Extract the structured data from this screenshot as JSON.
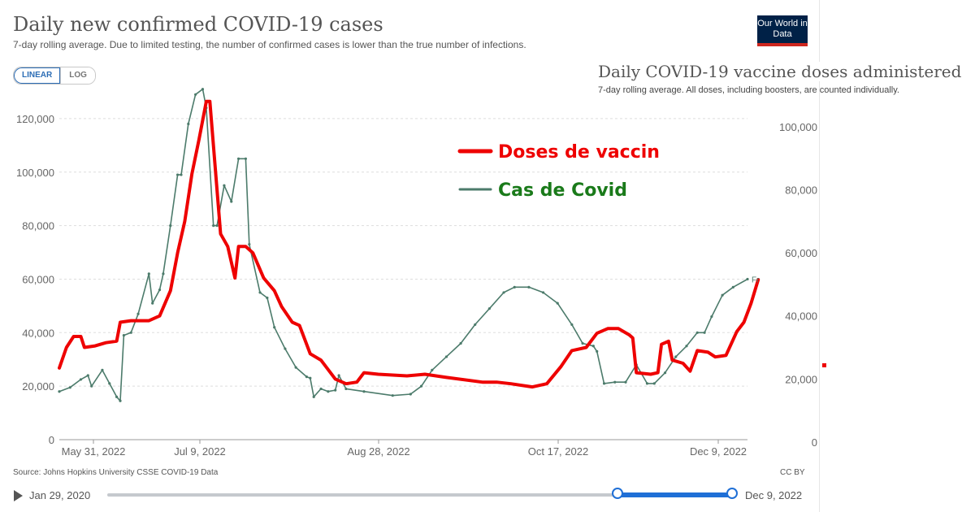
{
  "header": {
    "title": "Daily new confirmed COVID-19 cases",
    "subtitle": "7-day rolling average. Due to limited testing, the number of confirmed cases is lower than the true number of infections.",
    "logo": "Our World in Data"
  },
  "scale_toggle": {
    "linear": "LINEAR",
    "log": "LOG",
    "selected": "LINEAR"
  },
  "overlay": {
    "title": "Daily COVID-19 vaccine doses administered",
    "subtitle": "7-day rolling average. All doses, including boosters, are counted individually."
  },
  "footer": {
    "source": "Source: Johns Hopkins University CSSE COVID-19 Data",
    "license": "CC BY"
  },
  "timeline": {
    "start_label": "Jan 29, 2020",
    "end_label": "Dec 9, 2022",
    "range_start_fraction": 0.818,
    "range_end_fraction": 1.0
  },
  "chart_data": {
    "type": "line",
    "x_tick_labels": [
      "May 31, 2022",
      "Jul 9, 2022",
      "Aug 28, 2022",
      "Oct 17, 2022",
      "Dec 9, 2022"
    ],
    "x_range": [
      "2022-05-31",
      "2022-12-09"
    ],
    "y_left": {
      "ticks": [
        0,
        20000,
        40000,
        60000,
        80000,
        100000,
        120000
      ],
      "tick_labels": [
        "0",
        "20,000",
        "40,000",
        "60,000",
        "80,000",
        "100,000",
        "120,000"
      ],
      "range": [
        0,
        130000
      ]
    },
    "y_right": {
      "ticks": [
        0,
        20000,
        40000,
        60000,
        80000,
        100000
      ],
      "tick_labels": [
        "0",
        "20,000",
        "40,000",
        "60,000",
        "80,000",
        "100,000"
      ],
      "range": [
        0,
        110000
      ]
    },
    "grid": true,
    "legend": [
      {
        "label": "Doses de vaccin",
        "color": "#ee0000"
      },
      {
        "label": "Cas de Covid",
        "color": "#4c7b6b"
      }
    ],
    "end_label": "Fr",
    "series": [
      {
        "axis": "left",
        "color": "#4c7b6b",
        "points": [
          [
            "2022-05-31",
            18000
          ],
          [
            "2022-06-03",
            19500
          ],
          [
            "2022-06-06",
            22500
          ],
          [
            "2022-06-08",
            24000
          ],
          [
            "2022-06-09",
            20000
          ],
          [
            "2022-06-12",
            26000
          ],
          [
            "2022-06-14",
            21000
          ],
          [
            "2022-06-16",
            16000
          ],
          [
            "2022-06-17",
            14500
          ],
          [
            "2022-06-18",
            39000
          ],
          [
            "2022-06-20",
            40000
          ],
          [
            "2022-06-22",
            47000
          ],
          [
            "2022-06-25",
            62000
          ],
          [
            "2022-06-26",
            51000
          ],
          [
            "2022-06-28",
            56000
          ],
          [
            "2022-06-29",
            62000
          ],
          [
            "2022-07-01",
            80000
          ],
          [
            "2022-07-03",
            99000
          ],
          [
            "2022-07-04",
            99000
          ],
          [
            "2022-07-06",
            118000
          ],
          [
            "2022-07-08",
            129000
          ],
          [
            "2022-07-10",
            131000
          ],
          [
            "2022-07-11",
            124000
          ],
          [
            "2022-07-13",
            80000
          ],
          [
            "2022-07-14",
            80000
          ],
          [
            "2022-07-16",
            95000
          ],
          [
            "2022-07-18",
            89000
          ],
          [
            "2022-07-20",
            105000
          ],
          [
            "2022-07-22",
            105000
          ],
          [
            "2022-07-23",
            73000
          ],
          [
            "2022-07-26",
            55000
          ],
          [
            "2022-07-28",
            53000
          ],
          [
            "2022-07-30",
            42000
          ],
          [
            "2022-08-02",
            34000
          ],
          [
            "2022-08-05",
            27000
          ],
          [
            "2022-08-08",
            23500
          ],
          [
            "2022-08-09",
            23000
          ],
          [
            "2022-08-10",
            16000
          ],
          [
            "2022-08-12",
            19000
          ],
          [
            "2022-08-14",
            18000
          ],
          [
            "2022-08-16",
            18500
          ],
          [
            "2022-08-17",
            24000
          ],
          [
            "2022-08-19",
            19000
          ],
          [
            "2022-08-24",
            18000
          ],
          [
            "2022-09-01",
            16500
          ],
          [
            "2022-09-06",
            17000
          ],
          [
            "2022-09-09",
            20000
          ],
          [
            "2022-09-12",
            26000
          ],
          [
            "2022-09-16",
            31000
          ],
          [
            "2022-09-20",
            36000
          ],
          [
            "2022-09-24",
            43000
          ],
          [
            "2022-09-28",
            49000
          ],
          [
            "2022-10-02",
            55000
          ],
          [
            "2022-10-05",
            57000
          ],
          [
            "2022-10-09",
            57000
          ],
          [
            "2022-10-13",
            55000
          ],
          [
            "2022-10-17",
            51000
          ],
          [
            "2022-10-21",
            43000
          ],
          [
            "2022-10-24",
            36000
          ],
          [
            "2022-10-27",
            35000
          ],
          [
            "2022-10-28",
            33000
          ],
          [
            "2022-10-30",
            21000
          ],
          [
            "2022-11-02",
            21500
          ],
          [
            "2022-11-05",
            21500
          ],
          [
            "2022-11-08",
            28000
          ],
          [
            "2022-11-11",
            21000
          ],
          [
            "2022-11-13",
            21000
          ],
          [
            "2022-11-16",
            25000
          ],
          [
            "2022-11-19",
            31000
          ],
          [
            "2022-11-22",
            35000
          ],
          [
            "2022-11-25",
            40000
          ],
          [
            "2022-11-27",
            40000
          ],
          [
            "2022-11-29",
            46000
          ],
          [
            "2022-12-02",
            54000
          ],
          [
            "2022-12-05",
            57000
          ],
          [
            "2022-12-09",
            60000
          ]
        ]
      },
      {
        "axis": "right",
        "color": "#ee0000",
        "points": [
          [
            "2022-05-31",
            23500
          ],
          [
            "2022-06-02",
            30000
          ],
          [
            "2022-06-04",
            33500
          ],
          [
            "2022-06-06",
            33500
          ],
          [
            "2022-06-07",
            30000
          ],
          [
            "2022-06-10",
            30500
          ],
          [
            "2022-06-13",
            31500
          ],
          [
            "2022-06-16",
            32000
          ],
          [
            "2022-06-17",
            38000
          ],
          [
            "2022-06-20",
            38500
          ],
          [
            "2022-06-25",
            38500
          ],
          [
            "2022-06-28",
            40000
          ],
          [
            "2022-07-01",
            48000
          ],
          [
            "2022-07-03",
            60000
          ],
          [
            "2022-07-05",
            70000
          ],
          [
            "2022-07-07",
            85000
          ],
          [
            "2022-07-09",
            96000
          ],
          [
            "2022-07-11",
            108000
          ],
          [
            "2022-07-12",
            108000
          ],
          [
            "2022-07-14",
            80000
          ],
          [
            "2022-07-15",
            66000
          ],
          [
            "2022-07-17",
            62000
          ],
          [
            "2022-07-19",
            52000
          ],
          [
            "2022-07-20",
            62000
          ],
          [
            "2022-07-22",
            62000
          ],
          [
            "2022-07-24",
            60000
          ],
          [
            "2022-07-27",
            52000
          ],
          [
            "2022-07-30",
            48000
          ],
          [
            "2022-08-01",
            43000
          ],
          [
            "2022-08-04",
            38000
          ],
          [
            "2022-08-06",
            37000
          ],
          [
            "2022-08-09",
            28000
          ],
          [
            "2022-08-12",
            26000
          ],
          [
            "2022-08-16",
            20000
          ],
          [
            "2022-08-19",
            18500
          ],
          [
            "2022-08-22",
            19000
          ],
          [
            "2022-08-24",
            22000
          ],
          [
            "2022-08-28",
            21500
          ],
          [
            "2022-09-05",
            21000
          ],
          [
            "2022-09-10",
            21500
          ],
          [
            "2022-09-16",
            20500
          ],
          [
            "2022-09-26",
            19000
          ],
          [
            "2022-09-30",
            19000
          ],
          [
            "2022-10-04",
            18500
          ],
          [
            "2022-10-10",
            17500
          ],
          [
            "2022-10-14",
            18500
          ],
          [
            "2022-10-18",
            24000
          ],
          [
            "2022-10-21",
            29000
          ],
          [
            "2022-10-25",
            30000
          ],
          [
            "2022-10-28",
            34500
          ],
          [
            "2022-10-31",
            36000
          ],
          [
            "2022-11-03",
            36000
          ],
          [
            "2022-11-06",
            34000
          ],
          [
            "2022-11-07",
            33000
          ],
          [
            "2022-11-08",
            22000
          ],
          [
            "2022-11-12",
            21500
          ],
          [
            "2022-11-14",
            22000
          ],
          [
            "2022-11-15",
            31000
          ],
          [
            "2022-11-17",
            32000
          ],
          [
            "2022-11-18",
            26000
          ],
          [
            "2022-11-21",
            25000
          ],
          [
            "2022-11-23",
            22500
          ],
          [
            "2022-11-25",
            29000
          ],
          [
            "2022-11-28",
            28500
          ],
          [
            "2022-11-30",
            27000
          ],
          [
            "2022-12-03",
            27500
          ],
          [
            "2022-12-06",
            35000
          ],
          [
            "2022-12-08",
            38000
          ],
          [
            "2022-12-10",
            44000
          ],
          [
            "2022-12-12",
            51500
          ]
        ]
      }
    ]
  }
}
